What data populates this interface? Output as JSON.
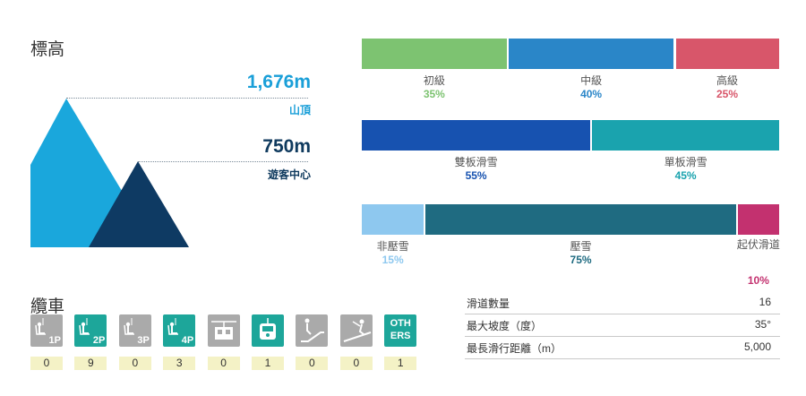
{
  "elevation": {
    "title": "標高",
    "summit_value": "1,676m",
    "summit_label": "山頂",
    "base_value": "750m",
    "base_label": "遊客中心"
  },
  "difficulty": [
    {
      "label": "初級",
      "pct": "35%",
      "value": 35,
      "color": "#7dc371"
    },
    {
      "label": "中級",
      "pct": "40%",
      "value": 40,
      "color": "#2a86c8"
    },
    {
      "label": "高級",
      "pct": "25%",
      "value": 25,
      "color": "#d8566a"
    }
  ],
  "ski_type": [
    {
      "label": "雙板滑雪",
      "pct": "55%",
      "value": 55,
      "color": "#1752b0"
    },
    {
      "label": "單板滑雪",
      "pct": "45%",
      "value": 45,
      "color": "#1aa3ae"
    }
  ],
  "snow_type": [
    {
      "label": "非壓雪",
      "pct": "15%",
      "value": 15,
      "color": "#8ec8ef"
    },
    {
      "label": "壓雪",
      "pct": "75%",
      "value": 75,
      "color": "#1f6b81"
    },
    {
      "label": "起伏滑道",
      "pct": "10%",
      "value": 10,
      "color": "#c3316f"
    }
  ],
  "lifts": {
    "title": "纜車",
    "items": [
      {
        "icon": "single-chairlift-icon",
        "tag": "1P",
        "count": "0",
        "color": "#aaaaaa"
      },
      {
        "icon": "double-chairlift-icon",
        "tag": "2P",
        "count": "9",
        "color": "#1da69a"
      },
      {
        "icon": "triple-chairlift-icon",
        "tag": "3P",
        "count": "0",
        "color": "#aaaaaa"
      },
      {
        "icon": "quad-chairlift-icon",
        "tag": "4P",
        "count": "3",
        "color": "#1da69a"
      },
      {
        "icon": "cable-car-icon",
        "tag": "",
        "count": "0",
        "color": "#aaaaaa"
      },
      {
        "icon": "gondola-icon",
        "tag": "",
        "count": "1",
        "color": "#1da69a"
      },
      {
        "icon": "moving-walkway-icon",
        "tag": "",
        "count": "0",
        "color": "#aaaaaa"
      },
      {
        "icon": "surface-lift-icon",
        "tag": "",
        "count": "0",
        "color": "#aaaaaa"
      },
      {
        "icon": "others-icon",
        "tag": "OTH\nERS",
        "count": "1",
        "color": "#1da69a"
      }
    ]
  },
  "stats": [
    {
      "label": "滑道數量",
      "value": "16"
    },
    {
      "label": "最大坡度（度）",
      "value": "35°"
    },
    {
      "label": "最長滑行距離（m）",
      "value": "5,000"
    }
  ],
  "colors": {
    "summit": "#1a9fd8",
    "base": "#0f3a5e"
  }
}
